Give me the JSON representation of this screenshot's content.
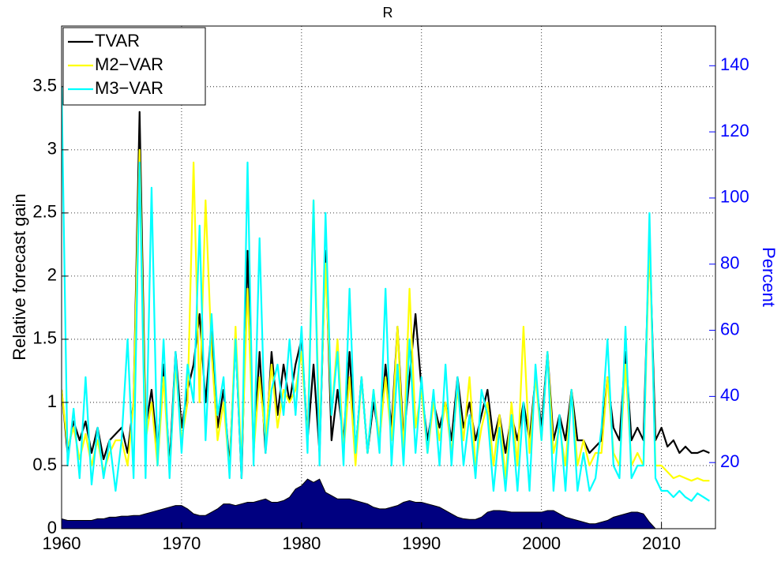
{
  "chart_data": {
    "type": "line",
    "title": "R",
    "ylabel": "Relative forecast gain",
    "y2label": "Percent",
    "x": [
      1960,
      1960.5,
      1961,
      1961.5,
      1962,
      1962.5,
      1963,
      1963.5,
      1964,
      1964.5,
      1965,
      1965.5,
      1966,
      1966.5,
      1967,
      1967.5,
      1968,
      1968.5,
      1969,
      1969.5,
      1970,
      1970.5,
      1971,
      1971.5,
      1972,
      1972.5,
      1973,
      1973.5,
      1974,
      1974.5,
      1975,
      1975.5,
      1976,
      1976.5,
      1977,
      1977.5,
      1978,
      1978.5,
      1979,
      1979.5,
      1980,
      1980.5,
      1981,
      1981.5,
      1982,
      1982.5,
      1983,
      1983.5,
      1984,
      1984.5,
      1985,
      1985.5,
      1986,
      1986.5,
      1987,
      1987.5,
      1988,
      1988.5,
      1989,
      1989.5,
      1990,
      1990.5,
      1991,
      1991.5,
      1992,
      1992.5,
      1993,
      1993.5,
      1994,
      1994.5,
      1995,
      1995.5,
      1996,
      1996.5,
      1997,
      1997.5,
      1998,
      1998.5,
      1999,
      1999.5,
      2000,
      2000.5,
      2001,
      2001.5,
      2002,
      2002.5,
      2003,
      2003.5,
      2004,
      2004.5,
      2005,
      2005.5,
      2006,
      2006.5,
      2007,
      2007.5,
      2008,
      2008.5,
      2009,
      2009.5,
      2010,
      2010.5,
      2011,
      2011.5,
      2012,
      2012.5,
      2013,
      2013.5,
      2014
    ],
    "area": {
      "axis": "y2",
      "color": "#000080",
      "values": [
        3,
        2.5,
        2.5,
        2.5,
        2.5,
        2.5,
        3,
        3,
        3.5,
        3.5,
        3.8,
        3.8,
        4,
        4,
        4.5,
        5,
        5.5,
        6,
        6.5,
        7,
        7,
        6,
        4.5,
        4,
        4,
        5,
        6,
        7.5,
        7.5,
        7,
        7.5,
        8,
        8,
        8.5,
        9,
        8,
        8,
        8.5,
        9.5,
        12,
        13,
        15,
        14,
        15,
        11,
        10,
        9,
        9,
        9,
        8.5,
        8,
        7.5,
        6.5,
        6,
        6,
        6.5,
        7,
        8,
        8.5,
        8,
        8,
        7.5,
        7,
        6.5,
        5.5,
        4.5,
        3.5,
        3,
        2.8,
        2.8,
        3.5,
        5,
        5.5,
        5.5,
        5.3,
        5,
        5,
        5,
        5,
        5,
        5,
        5.5,
        5.5,
        4.5,
        3.5,
        3,
        2.5,
        2,
        1.5,
        1.5,
        2,
        2.5,
        3.5,
        4,
        4.5,
        5,
        5,
        4.5,
        2,
        0,
        0,
        0,
        0,
        0,
        0,
        0,
        0,
        0,
        0
      ]
    },
    "series": [
      {
        "name": "TVAR",
        "color": "#000000",
        "values": [
          1.1,
          0.6,
          0.85,
          0.7,
          0.85,
          0.6,
          0.8,
          0.55,
          0.7,
          0.75,
          0.8,
          0.6,
          1.0,
          3.3,
          0.8,
          1.1,
          0.6,
          1.3,
          0.5,
          1.4,
          0.8,
          1.1,
          1.3,
          1.7,
          1.0,
          1.6,
          0.8,
          1.1,
          0.5,
          1.5,
          0.4,
          2.2,
          0.6,
          1.4,
          0.6,
          1.4,
          0.9,
          1.3,
          1.0,
          1.3,
          1.5,
          0.7,
          1.3,
          0.6,
          2.2,
          0.7,
          1.1,
          0.7,
          1.4,
          0.6,
          1.2,
          0.6,
          1.0,
          0.7,
          1.3,
          0.8,
          1.6,
          0.7,
          1.2,
          1.7,
          1.1,
          0.7,
          1.0,
          0.8,
          1.0,
          0.7,
          1.2,
          0.8,
          1.0,
          0.7,
          0.9,
          1.1,
          0.7,
          0.9,
          0.6,
          0.9,
          0.7,
          1.0,
          0.7,
          1.2,
          0.8,
          1.4,
          0.7,
          0.9,
          0.7,
          1.1,
          0.7,
          0.7,
          0.6,
          0.65,
          0.7,
          1.2,
          0.8,
          0.7,
          1.4,
          0.7,
          0.8,
          0.7,
          2.3,
          0.7,
          0.8,
          0.65,
          0.7,
          0.6,
          0.65,
          0.6,
          0.6,
          0.62,
          0.6
        ]
      },
      {
        "name": "M2−VAR",
        "color": "#ffff00",
        "values": [
          1.1,
          0.65,
          0.8,
          0.55,
          0.75,
          0.5,
          0.7,
          0.45,
          0.6,
          0.7,
          0.7,
          0.5,
          1.0,
          3.0,
          0.7,
          1.0,
          0.5,
          1.2,
          0.45,
          1.3,
          0.7,
          1.0,
          2.9,
          1.0,
          2.6,
          1.4,
          0.7,
          1.0,
          0.45,
          1.6,
          0.5,
          1.9,
          0.6,
          1.2,
          0.7,
          1.3,
          0.8,
          1.1,
          1.0,
          1.1,
          1.4,
          0.7,
          2.6,
          0.7,
          2.1,
          0.9,
          1.5,
          0.6,
          1.2,
          0.5,
          1.2,
          0.6,
          1.1,
          0.7,
          1.2,
          0.7,
          1.6,
          0.6,
          1.9,
          0.8,
          1.1,
          0.6,
          1.0,
          0.7,
          1.0,
          0.6,
          1.1,
          0.7,
          1.2,
          0.5,
          0.8,
          1.0,
          0.5,
          0.9,
          0.4,
          1.0,
          0.5,
          1.6,
          0.6,
          1.2,
          0.7,
          1.4,
          0.6,
          0.8,
          0.5,
          1.1,
          0.5,
          0.7,
          0.5,
          0.6,
          0.6,
          1.2,
          0.6,
          0.5,
          1.3,
          0.5,
          0.6,
          0.5,
          2.3,
          0.5,
          0.5,
          0.45,
          0.4,
          0.42,
          0.4,
          0.38,
          0.4,
          0.38,
          0.38
        ]
      },
      {
        "name": "M3−VAR",
        "color": "#00ffff",
        "values": [
          3.5,
          0.5,
          0.95,
          0.4,
          1.2,
          0.35,
          0.8,
          0.4,
          0.7,
          0.3,
          0.7,
          1.5,
          0.4,
          2.9,
          0.4,
          2.7,
          0.5,
          1.5,
          0.4,
          1.4,
          0.6,
          1.3,
          1.0,
          2.4,
          0.7,
          1.7,
          0.9,
          1.2,
          0.4,
          1.5,
          0.4,
          2.9,
          0.5,
          2.3,
          0.6,
          1.1,
          1.3,
          0.9,
          1.5,
          0.9,
          1.6,
          0.6,
          2.6,
          0.5,
          2.5,
          0.9,
          1.4,
          0.5,
          1.9,
          0.6,
          1.2,
          0.6,
          1.1,
          0.6,
          1.9,
          0.5,
          1.3,
          0.5,
          1.5,
          0.6,
          1.2,
          0.6,
          1.1,
          0.5,
          1.3,
          0.5,
          1.2,
          0.5,
          0.9,
          0.4,
          1.1,
          0.9,
          0.3,
          0.8,
          0.3,
          0.9,
          0.3,
          1.0,
          0.3,
          1.3,
          0.7,
          1.4,
          0.3,
          0.9,
          0.3,
          1.1,
          0.3,
          0.6,
          0.3,
          0.4,
          0.8,
          1.5,
          0.5,
          0.4,
          1.6,
          0.4,
          0.5,
          0.5,
          2.5,
          0.4,
          0.3,
          0.3,
          0.25,
          0.3,
          0.25,
          0.22,
          0.28,
          0.25,
          0.22
        ]
      }
    ],
    "xlim": [
      1960,
      2014.5
    ],
    "xticks": [
      1960,
      1970,
      1980,
      1990,
      2000,
      2010
    ],
    "ylim": [
      0,
      3.98
    ],
    "yticks": [
      0,
      0.5,
      1,
      1.5,
      2,
      2.5,
      3,
      3.5
    ],
    "y2lim": [
      0,
      152
    ],
    "y2ticks": [
      20,
      40,
      60,
      80,
      100,
      120,
      140
    ],
    "y2color": "#0000ff",
    "grid": true,
    "legend": "upper left"
  }
}
